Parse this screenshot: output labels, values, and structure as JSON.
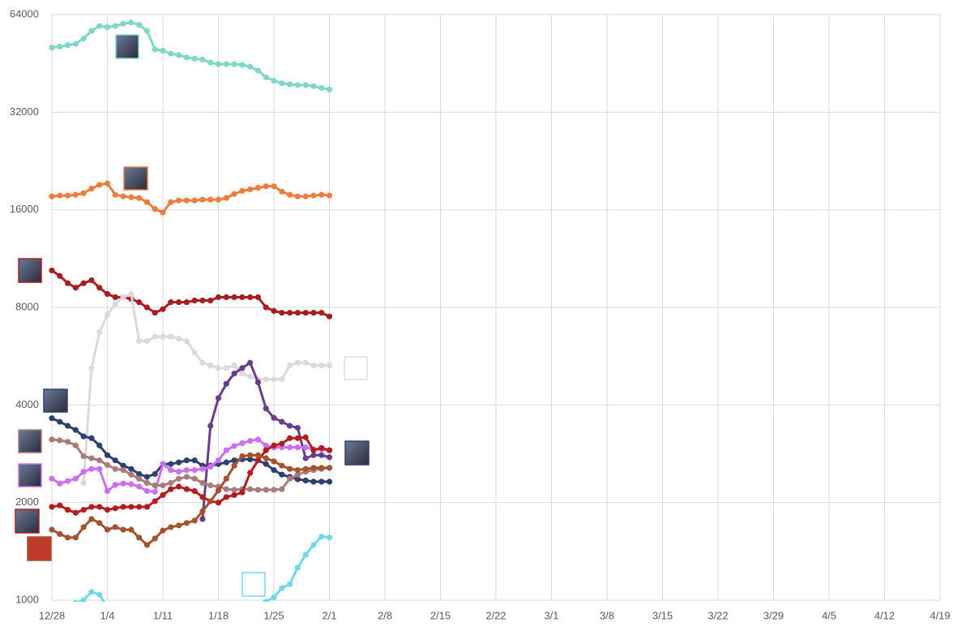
{
  "chart_data": {
    "type": "line",
    "log_scale": true,
    "grid": true,
    "ylim": [
      1000,
      64000
    ],
    "yticks": [
      1000,
      2000,
      4000,
      8000,
      16000,
      32000,
      64000
    ],
    "xlim": [
      0,
      112
    ],
    "xticks": [
      {
        "value": 0,
        "label": "12/28"
      },
      {
        "value": 7,
        "label": "1/4"
      },
      {
        "value": 14,
        "label": "1/11"
      },
      {
        "value": 21,
        "label": "1/18"
      },
      {
        "value": 28,
        "label": "1/25"
      },
      {
        "value": 35,
        "label": "2/1"
      },
      {
        "value": 42,
        "label": "2/8"
      },
      {
        "value": 49,
        "label": "2/15"
      },
      {
        "value": 56,
        "label": "2/22"
      },
      {
        "value": 63,
        "label": "3/1"
      },
      {
        "value": 70,
        "label": "3/8"
      },
      {
        "value": 77,
        "label": "3/15"
      },
      {
        "value": 84,
        "label": "3/22"
      },
      {
        "value": 91,
        "label": "3/29"
      },
      {
        "value": 98,
        "label": "4/5"
      },
      {
        "value": 105,
        "label": "4/12"
      },
      {
        "value": 112,
        "label": "4/19"
      }
    ],
    "series": [
      {
        "color": "#7fd8c6",
        "values": [
          50600,
          51000,
          51500,
          52000,
          54000,
          57000,
          59000,
          58500,
          59000,
          60000,
          60500,
          59500,
          57000,
          50000,
          49500,
          48500,
          48000,
          47200,
          46800,
          46500,
          45500,
          45000,
          45000,
          45000,
          44800,
          44200,
          43000,
          41000,
          40000,
          39300,
          39000,
          38800,
          38800,
          38500,
          38000,
          37600
        ]
      },
      {
        "color": "#ea7d40",
        "values": [
          17600,
          17700,
          17700,
          17800,
          18000,
          18600,
          19100,
          19300,
          17800,
          17600,
          17500,
          17400,
          16900,
          16100,
          15700,
          16900,
          17100,
          17100,
          17100,
          17200,
          17200,
          17200,
          17400,
          17900,
          18300,
          18500,
          18700,
          18900,
          18900,
          18200,
          17800,
          17600,
          17600,
          17700,
          17800,
          17700
        ]
      },
      {
        "color": "#a51f22",
        "values": [
          10400,
          10000,
          9500,
          9200,
          9500,
          9700,
          9200,
          8800,
          8600,
          8600,
          8500,
          8300,
          8000,
          7700,
          7900,
          8300,
          8300,
          8300,
          8400,
          8400,
          8400,
          8600,
          8600,
          8600,
          8600,
          8600,
          8600,
          8000,
          7800,
          7700,
          7700,
          7700,
          7700,
          7700,
          7700,
          7500
        ]
      },
      {
        "color": "#dadada",
        "values": [
          null,
          null,
          null,
          null,
          2300,
          5200,
          6700,
          7600,
          8200,
          8600,
          8800,
          6300,
          6300,
          6500,
          6500,
          6500,
          6400,
          6300,
          5800,
          5400,
          5300,
          5200,
          5200,
          5300,
          5000,
          4900,
          4800,
          4800,
          4800,
          4800,
          5300,
          5400,
          5400,
          5300,
          5300,
          5300
        ]
      },
      {
        "color": "#6a3d8a",
        "values": [
          null,
          null,
          null,
          null,
          null,
          null,
          null,
          null,
          null,
          null,
          null,
          null,
          null,
          null,
          null,
          null,
          null,
          null,
          null,
          1780,
          3450,
          4200,
          4650,
          5000,
          5200,
          5400,
          4700,
          3900,
          3650,
          3550,
          3450,
          3400,
          2740,
          2800,
          2800,
          2760
        ]
      },
      {
        "color": "#2f3f6e",
        "values": [
          3640,
          3550,
          3450,
          3350,
          3200,
          3160,
          3000,
          2800,
          2700,
          2600,
          2540,
          2450,
          2400,
          2450,
          2630,
          2630,
          2660,
          2700,
          2700,
          2600,
          2600,
          2630,
          2660,
          2700,
          2720,
          2720,
          2700,
          2630,
          2520,
          2440,
          2400,
          2360,
          2340,
          2320,
          2320,
          2320
        ]
      },
      {
        "color": "#cc6ff0",
        "values": [
          2370,
          2290,
          2330,
          2370,
          2490,
          2540,
          2540,
          2170,
          2270,
          2290,
          2280,
          2240,
          2170,
          2160,
          2630,
          2520,
          2490,
          2520,
          2520,
          2540,
          2580,
          2700,
          2900,
          2990,
          3050,
          3100,
          3130,
          3000,
          2960,
          2960,
          2960,
          2960,
          2960,
          2920,
          2920,
          2900
        ]
      },
      {
        "color": "#a97b7b",
        "values": [
          3130,
          3110,
          3080,
          3000,
          2780,
          2740,
          2700,
          2610,
          2540,
          2520,
          2440,
          2370,
          2300,
          2260,
          2260,
          2300,
          2370,
          2400,
          2370,
          2300,
          2260,
          2240,
          2200,
          2190,
          2200,
          2200,
          2190,
          2190,
          2190,
          2200,
          2370,
          2440,
          2490,
          2520,
          2540,
          2560
        ]
      },
      {
        "color": "#b01e22",
        "values": [
          1940,
          1960,
          1900,
          1860,
          1900,
          1940,
          1940,
          1900,
          1920,
          1940,
          1940,
          1940,
          1940,
          2020,
          2110,
          2200,
          2240,
          2200,
          2170,
          2080,
          2020,
          2000,
          2080,
          2110,
          2150,
          2470,
          2700,
          2900,
          3000,
          3040,
          3160,
          3160,
          3180,
          2900,
          2950,
          2900
        ]
      },
      {
        "color": "#a3532d",
        "values": [
          1650,
          1600,
          1560,
          1560,
          1680,
          1780,
          1730,
          1650,
          1680,
          1650,
          1650,
          1560,
          1480,
          1550,
          1640,
          1680,
          1700,
          1730,
          1760,
          1880,
          2020,
          2180,
          2370,
          2600,
          2780,
          2800,
          2800,
          2740,
          2680,
          2600,
          2540,
          2520,
          2540,
          2560,
          2560,
          2560
        ]
      },
      {
        "color": "#72d8e8",
        "values": [
          null,
          null,
          null,
          980,
          1000,
          1060,
          1040,
          950,
          null,
          null,
          null,
          null,
          null,
          null,
          null,
          null,
          null,
          null,
          null,
          null,
          null,
          null,
          null,
          null,
          null,
          null,
          null,
          990,
          1020,
          1090,
          1120,
          1260,
          1380,
          1480,
          1570,
          1560
        ]
      }
    ]
  }
}
